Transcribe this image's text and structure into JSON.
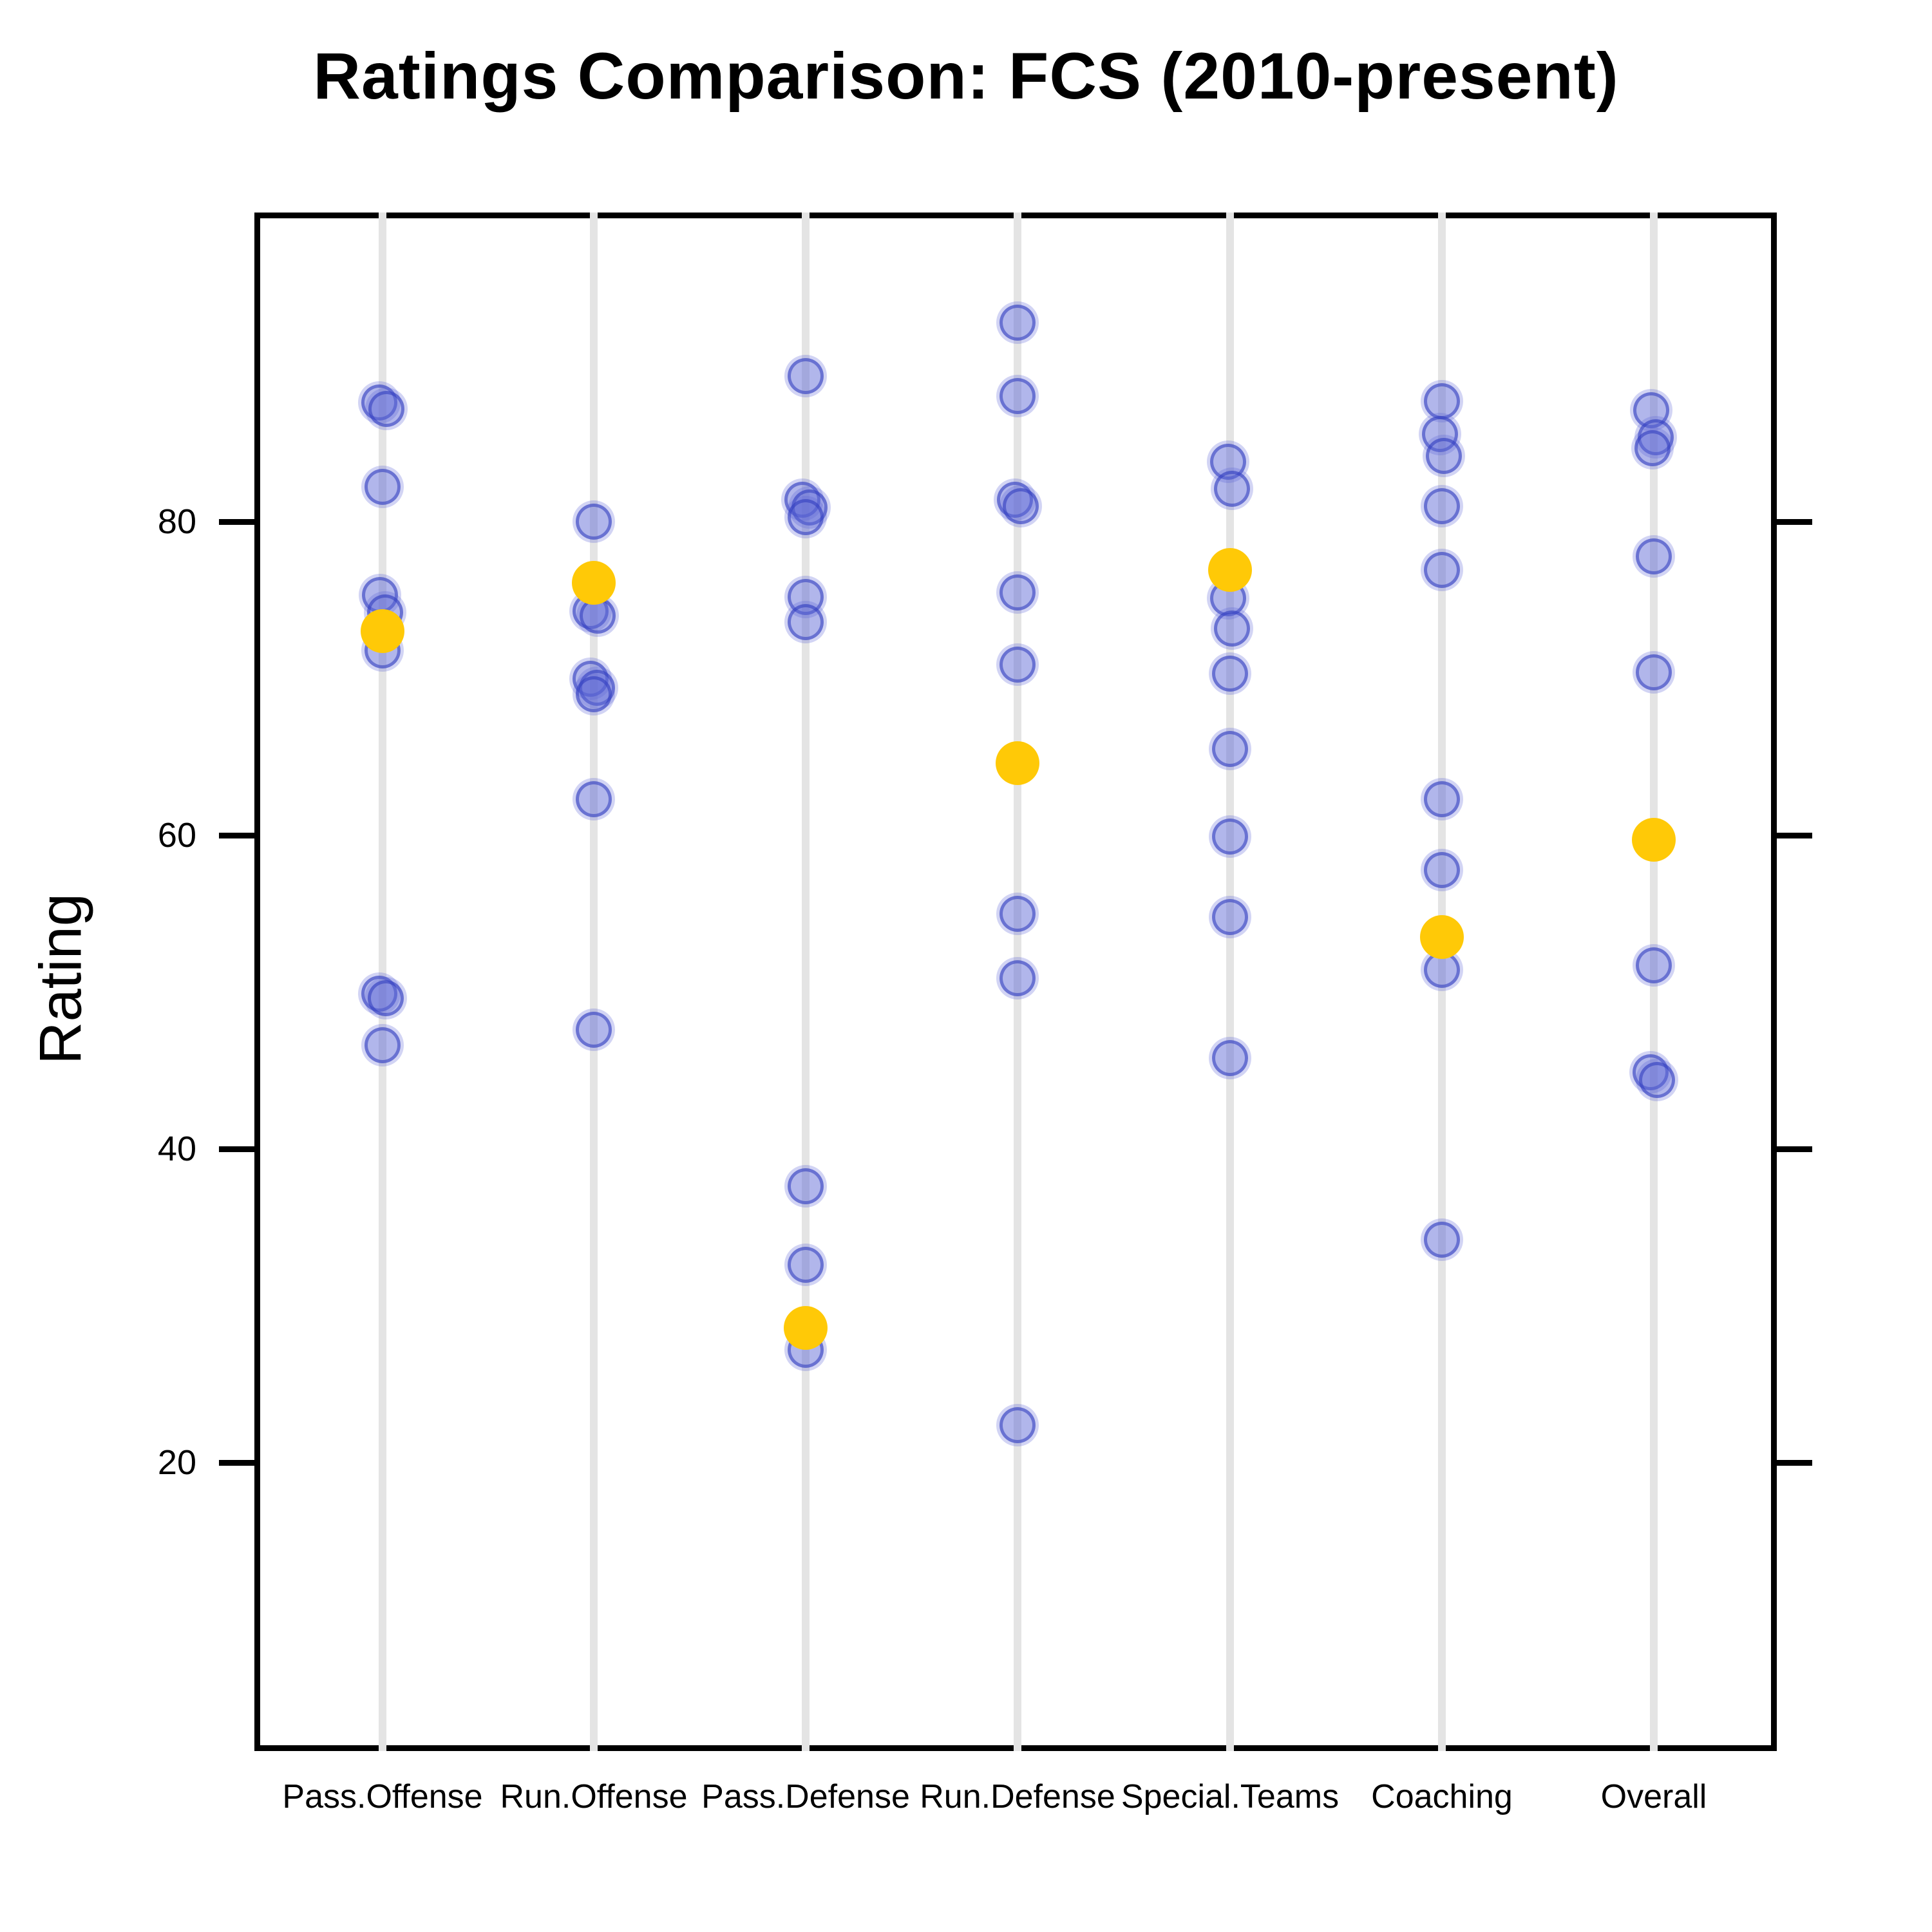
{
  "title": "Ratings Comparison: FCS (2010-present)",
  "ylabel": "Rating",
  "colors": {
    "point_fill": "rgba(92,102,214,0.48)",
    "point_border": "rgba(48,58,190,0.55)",
    "point_halo": "rgba(92,102,214,0.28)",
    "median": "#ffc907",
    "gridline": "#e4e4e4",
    "axis": "#000000",
    "background": "#ffffff"
  },
  "chart_data": {
    "type": "scatter",
    "subtype": "strip-plot-by-category",
    "title": "Ratings Comparison: FCS (2010-present)",
    "xlabel": "",
    "ylabel": "Rating",
    "ylim": [
      2,
      100
    ],
    "yticks": [
      20,
      40,
      60,
      80
    ],
    "grid": "vertical-category-lines",
    "legend_position": "none",
    "categories": [
      "Pass.Offense",
      "Run.Offense",
      "Pass.Defense",
      "Run.Defense",
      "Special.Teams",
      "Coaching",
      "Overall"
    ],
    "series": [
      {
        "category": "Pass.Offense",
        "points": [
          [
            87.6,
            -5
          ],
          [
            87.2,
            6
          ],
          [
            82.2,
            0
          ],
          [
            75.3,
            -4
          ],
          [
            74.2,
            4
          ],
          [
            71.8,
            0
          ],
          [
            49.9,
            -5
          ],
          [
            49.6,
            5
          ],
          [
            46.6,
            0
          ]
        ],
        "median": 73.0
      },
      {
        "category": "Run.Offense",
        "points": [
          [
            80.0,
            0
          ],
          [
            74.3,
            -5
          ],
          [
            74.0,
            6
          ],
          [
            70.0,
            -5
          ],
          [
            69.4,
            5
          ],
          [
            69.0,
            0
          ],
          [
            62.3,
            0
          ],
          [
            47.6,
            0
          ]
        ],
        "median": 76.1
      },
      {
        "category": "Pass.Defense",
        "points": [
          [
            89.3,
            0
          ],
          [
            81.4,
            -5
          ],
          [
            80.9,
            6
          ],
          [
            80.3,
            0
          ],
          [
            75.2,
            0
          ],
          [
            73.6,
            0
          ],
          [
            37.6,
            0
          ],
          [
            32.6,
            0
          ],
          [
            27.2,
            0
          ]
        ],
        "median": 28.6
      },
      {
        "category": "Run.Defense",
        "points": [
          [
            92.7,
            0
          ],
          [
            88.0,
            0
          ],
          [
            81.4,
            -4
          ],
          [
            81.0,
            5
          ],
          [
            75.5,
            0
          ],
          [
            70.9,
            0
          ],
          [
            55.0,
            0
          ],
          [
            50.9,
            0
          ],
          [
            22.4,
            0
          ]
        ],
        "median": 64.6
      },
      {
        "category": "Special.Teams",
        "points": [
          [
            83.8,
            -3
          ],
          [
            82.1,
            3
          ],
          [
            75.1,
            -3
          ],
          [
            73.2,
            3
          ],
          [
            70.3,
            0
          ],
          [
            65.5,
            0
          ],
          [
            59.9,
            0
          ],
          [
            54.8,
            0
          ],
          [
            45.8,
            0
          ]
        ],
        "median": 76.9
      },
      {
        "category": "Coaching",
        "points": [
          [
            87.7,
            0
          ],
          [
            85.6,
            -3
          ],
          [
            84.2,
            3
          ],
          [
            81.0,
            0
          ],
          [
            76.9,
            0
          ],
          [
            62.3,
            0
          ],
          [
            57.8,
            0
          ],
          [
            51.4,
            0
          ],
          [
            34.2,
            0
          ]
        ],
        "median": 53.5
      },
      {
        "category": "Overall",
        "points": [
          [
            87.1,
            -4
          ],
          [
            85.4,
            3
          ],
          [
            84.7,
            -2
          ],
          [
            77.8,
            0
          ],
          [
            70.4,
            0
          ],
          [
            51.7,
            0
          ],
          [
            44.9,
            -5
          ],
          [
            44.4,
            5
          ]
        ],
        "median": 59.7
      }
    ]
  }
}
